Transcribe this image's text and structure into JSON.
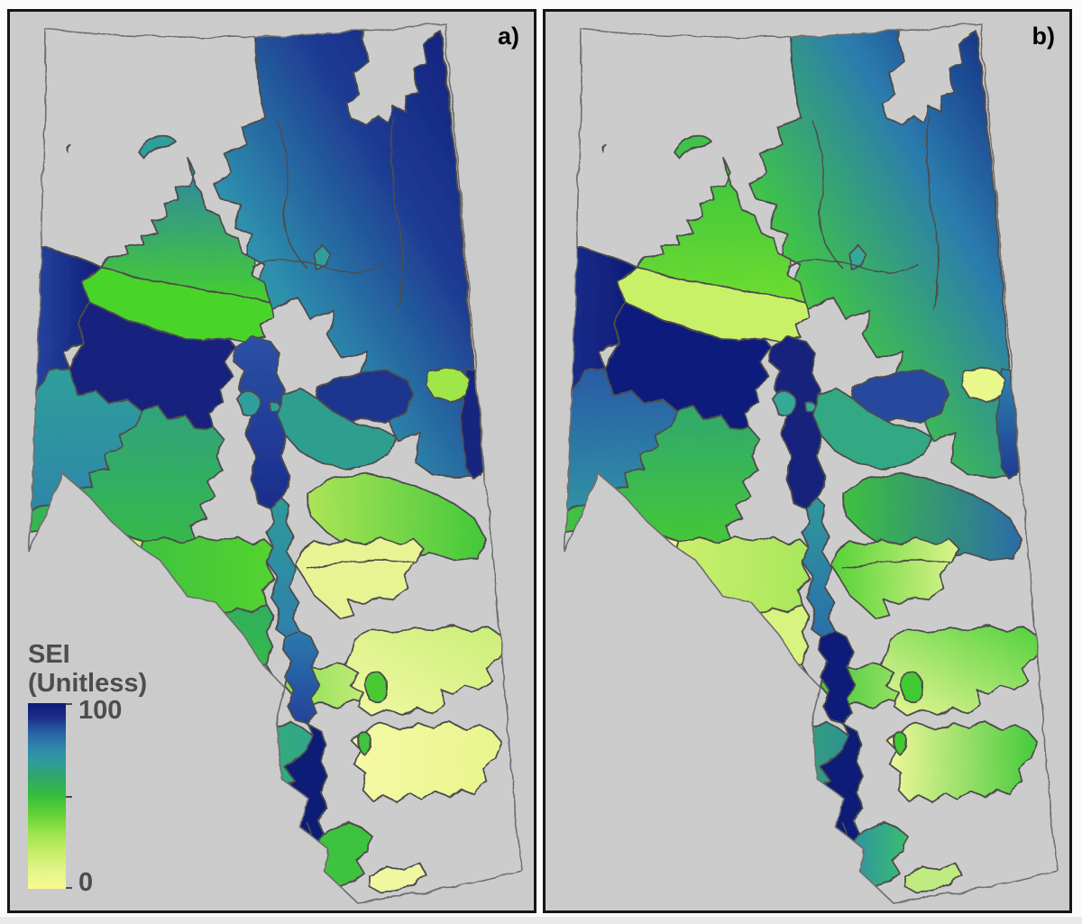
{
  "figure": {
    "panels": [
      {
        "id": "a",
        "label": "a)"
      },
      {
        "id": "b",
        "label": "b)"
      }
    ]
  },
  "legend": {
    "title_line1": "SEI",
    "title_line2": "(Unitless)",
    "max_label": "100",
    "min_label": "0",
    "colormap": [
      {
        "value": 0,
        "color": "#f9fa8d"
      },
      {
        "value": 10,
        "color": "#e3f48a"
      },
      {
        "value": 20,
        "color": "#c4ed68"
      },
      {
        "value": 30,
        "color": "#9ce44c"
      },
      {
        "value": 40,
        "color": "#63d235"
      },
      {
        "value": 50,
        "color": "#35bd3c"
      },
      {
        "value": 60,
        "color": "#2fa768"
      },
      {
        "value": 68,
        "color": "#2f9b98"
      },
      {
        "value": 75,
        "color": "#2e8bac"
      },
      {
        "value": 84,
        "color": "#2a62a6"
      },
      {
        "value": 92,
        "color": "#1b2f8b"
      },
      {
        "value": 100,
        "color": "#0e1b76"
      }
    ]
  },
  "colors": {
    "panel_background": "#cbcbcb",
    "province_fill": "#cccccc",
    "province_outline": "#6e6e6e",
    "region_stroke": "#4d4d4d",
    "panel_border": "#151515",
    "label_text": "#4d4d4d"
  },
  "chart_data": {
    "type": "choropleth_map",
    "title": "Two-panel isopleth map of Alberta sub-watersheds",
    "variable": "SEI (Unitless)",
    "value_range": [
      0,
      100
    ],
    "legend_position": "bottom-left of panel a",
    "panels": [
      "a)",
      "b)"
    ]
  },
  "regions": [
    {
      "id": "ne",
      "est_sei": {
        "a": 80,
        "b": 55
      },
      "fill": {
        "a": {
          "dir": "d",
          "stops": [
            "#0e1d7b",
            "#1e3a92",
            "#2e8fae",
            "#3fc24c"
          ]
        },
        "b": {
          "dir": "d",
          "stops": [
            "#11207c",
            "#2b7cae",
            "#3fc24b",
            "#9fe656"
          ]
        }
      }
    },
    {
      "id": "eaststrip",
      "est_sei": {
        "a": 95,
        "b": 75
      },
      "fill": {
        "a": "#15277e",
        "b": {
          "dir": "v",
          "stops": [
            "#2e86ae",
            "#1e3a92"
          ]
        }
      }
    },
    {
      "id": "nepatch",
      "est_sei": {
        "a": 30,
        "b": 8
      },
      "fill": {
        "a": "#9fe74a",
        "b": "#e9f88a"
      }
    },
    {
      "id": "bayblob",
      "est_sei": {
        "a": 64,
        "b": 62
      },
      "fill": {
        "a": "#2f9f9b",
        "b": "#35a89a"
      }
    },
    {
      "id": "nwlake",
      "est_sei": {
        "a": 64,
        "b": 42
      },
      "fill": {
        "a": "#2f9f9b",
        "b": "#3cc44a"
      }
    },
    {
      "id": "wing",
      "est_sei": {
        "a": 58,
        "b": 38
      },
      "fill": {
        "a": {
          "dir": "v",
          "stops": [
            "#2d7fae",
            "#45d02e"
          ]
        },
        "b": {
          "dir": "v",
          "stops": [
            "#3bc43e",
            "#6ddc30"
          ]
        }
      }
    },
    {
      "id": "band",
      "est_sei": {
        "a": 34,
        "b": 18
      },
      "fill": {
        "a": "#49d42c",
        "b": "#c9f168"
      }
    },
    {
      "id": "nwleft",
      "est_sei": {
        "a": 93,
        "b": 96
      },
      "fill": {
        "a": {
          "dir": "h",
          "stops": [
            "#2a4da5",
            "#101d7a"
          ]
        },
        "b": {
          "dir": "h",
          "stops": [
            "#1a2f8c",
            "#0e1b78"
          ]
        }
      }
    },
    {
      "id": "nwmid",
      "est_sei": {
        "a": 96,
        "b": 97
      },
      "fill": {
        "a": "#13217e",
        "b": "#101d7b"
      }
    },
    {
      "id": "nwteal",
      "est_sei": {
        "a": 68,
        "b": 74
      },
      "fill": {
        "a": {
          "dir": "v",
          "stops": [
            "#2f9f9a",
            "#2d86a9"
          ]
        },
        "b": {
          "dir": "v",
          "stops": [
            "#2b5aa6",
            "#2e93a3"
          ]
        }
      }
    },
    {
      "id": "stem",
      "est_sei": {
        "a": 85,
        "b": 96
      },
      "fill": {
        "a": {
          "dir": "v",
          "stops": [
            "#2b52a6",
            "#1b2c8c"
          ]
        },
        "b": "#12207c"
      }
    },
    {
      "id": "lakeA",
      "est_sei": {
        "a": 64,
        "b": 62
      },
      "fill": {
        "a": "#2f9f9b",
        "b": "#35a89a"
      }
    },
    {
      "id": "lakeB",
      "est_sei": {
        "a": 64,
        "b": 62
      },
      "fill": {
        "a": "#2f9f9b",
        "b": "#35a89a"
      }
    },
    {
      "id": "armnavy",
      "est_sei": {
        "a": 90,
        "b": 84
      },
      "fill": {
        "a": "#1e358f",
        "b": "#27489d"
      }
    },
    {
      "id": "armteal",
      "est_sei": {
        "a": 62,
        "b": 57
      },
      "fill": {
        "a": "#2e9e90",
        "b": "#31a983"
      }
    },
    {
      "id": "band10",
      "est_sei": {
        "a": 30,
        "b": 60
      },
      "fill": {
        "a": {
          "dir": "h",
          "stops": [
            "#aee557",
            "#42c83a"
          ]
        },
        "b": {
          "dir": "h",
          "stops": [
            "#3ec23e",
            "#2b6ca8"
          ]
        }
      }
    },
    {
      "id": "A",
      "est_sei": {
        "a": 52,
        "b": 50
      },
      "fill": {
        "a": {
          "dir": "v",
          "stops": [
            "#2fa37c",
            "#36b94a"
          ]
        },
        "b": {
          "dir": "v",
          "stops": [
            "#2fa86e",
            "#44c838"
          ]
        }
      }
    },
    {
      "id": "B",
      "est_sei": {
        "a": 14,
        "b": 8
      },
      "fill": {
        "a": "#cfee7e",
        "b": "#eef59b"
      }
    },
    {
      "id": "C",
      "est_sei": {
        "a": 42,
        "b": 20
      },
      "fill": {
        "a": {
          "dir": "h",
          "stops": [
            "#3dc23f",
            "#54d42f"
          ]
        },
        "b": {
          "dir": "h",
          "stops": [
            "#cdf06e",
            "#a8e75c"
          ]
        }
      }
    },
    {
      "id": "G",
      "est_sei": {
        "a": 66,
        "b": 68
      },
      "fill": {
        "a": {
          "dir": "v",
          "stops": [
            "#2e9a9b",
            "#2d7fab"
          ]
        },
        "b": {
          "dir": "v",
          "stops": [
            "#2e989b",
            "#2b6faa"
          ]
        }
      }
    },
    {
      "id": "D",
      "est_sei": {
        "a": 52,
        "b": 12
      },
      "fill": {
        "a": {
          "dir": "v",
          "stops": [
            "#2fae5e",
            "#36bb4a"
          ]
        },
        "b": "#d8f37f"
      }
    },
    {
      "id": "E",
      "est_sei": {
        "a": 44,
        "b": 15
      },
      "fill": {
        "a": "#42c73a",
        "b": {
          "dir": "h",
          "stops": [
            "#7fdc4a",
            "#e3f58a"
          ]
        }
      }
    },
    {
      "id": "H",
      "est_sei": {
        "a": 45,
        "b": 52
      },
      "fill": {
        "a": {
          "dir": "h",
          "stops": [
            "#3dbf44",
            "#31a58c"
          ]
        },
        "b": {
          "dir": "h",
          "stops": [
            "#3cbf43",
            "#2e9292"
          ]
        }
      }
    },
    {
      "id": "K",
      "est_sei": {
        "a": 8,
        "b": 20
      },
      "fill": {
        "a": "#e8f494",
        "b": {
          "dir": "h",
          "stops": [
            "#56d237",
            "#dcf489"
          ]
        }
      }
    },
    {
      "id": "fan2",
      "est_sei": {
        "a": 12,
        "b": 25
      },
      "fill": {
        "a": {
          "dir": "h",
          "stops": [
            "#8adf4f",
            "#eef59c"
          ]
        },
        "b": {
          "dir": "h",
          "stops": [
            "#44c83d",
            "#d9f580"
          ]
        }
      }
    },
    {
      "id": "L1",
      "est_sei": {
        "a": 5,
        "b": 15
      },
      "fill": {
        "a": {
          "dir": "d",
          "stops": [
            "#c9ee78",
            "#f4f8a3"
          ]
        },
        "b": {
          "dir": "d",
          "stops": [
            "#4fd13b",
            "#eef69a"
          ]
        }
      }
    },
    {
      "id": "L2",
      "est_sei": {
        "a": 4,
        "b": 15
      },
      "fill": {
        "a": {
          "dir": "h",
          "stops": [
            "#f5f9a4",
            "#e8f58e"
          ]
        },
        "b": {
          "dir": "h",
          "stops": [
            "#f3f89b",
            "#45ca3c"
          ]
        }
      }
    },
    {
      "id": "M1",
      "est_sei": {
        "a": 40,
        "b": 38
      },
      "fill": {
        "a": "#48ca36",
        "b": "#3fcb31"
      }
    },
    {
      "id": "M2",
      "est_sei": {
        "a": 42,
        "b": 38
      },
      "fill": {
        "a": "#3fc43e",
        "b": "#3fcb31"
      }
    },
    {
      "id": "N2",
      "est_sei": {
        "a": 80,
        "b": 97
      },
      "fill": {
        "a": {
          "dir": "v",
          "stops": [
            "#2b79ae",
            "#24419a"
          ]
        },
        "b": "#101d78"
      }
    },
    {
      "id": "N3",
      "est_sei": {
        "a": 98,
        "b": 98
      },
      "fill": {
        "a": "#0f1c77",
        "b": "#0f1c77"
      }
    },
    {
      "id": "N4",
      "est_sei": {
        "a": 44,
        "b": 60
      },
      "fill": {
        "a": "#3dc33d",
        "b": {
          "dir": "h",
          "stops": [
            "#2e8fa5",
            "#3abf6e"
          ]
        }
      }
    },
    {
      "id": "N5",
      "est_sei": {
        "a": 88,
        "b": 88
      },
      "fill": {
        "a": "#1b2f89",
        "b": "#1b2f89"
      }
    },
    {
      "id": "sliver",
      "est_sei": {
        "a": 6,
        "b": 20
      },
      "fill": {
        "a": "#eff7a0",
        "b": "#bfeb80"
      }
    },
    {
      "id": "tinylake",
      "est_sei": {
        "a": 42,
        "b": 12
      },
      "fill": {
        "a": "#3fc43e",
        "b": "#e3f58a"
      }
    }
  ]
}
